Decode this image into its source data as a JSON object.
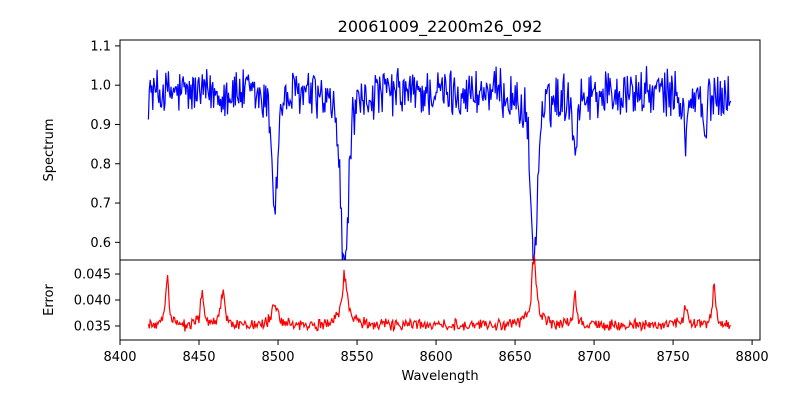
{
  "chart_data": [
    {
      "type": "line",
      "title": "20061009_2200m26_092",
      "ylabel": "Spectrum",
      "xlim": [
        8400,
        8805
      ],
      "ylim": [
        0.555,
        1.115
      ],
      "yticks": [
        0.6,
        0.7,
        0.8,
        0.9,
        1.0,
        1.1
      ],
      "ytick_labels": [
        "0.6",
        "0.7",
        "0.8",
        "0.9",
        "1.0",
        "1.1"
      ],
      "grid": false,
      "series": [
        {
          "color": "#0000ff",
          "x_range": [
            8418,
            8787
          ],
          "continuum": 0.98,
          "features": [
            {
              "x": 8498.0,
              "depth": 0.25,
              "width": 1.6
            },
            {
              "x": 8542.0,
              "depth": 0.4,
              "width": 2.2
            },
            {
              "x": 8662.0,
              "depth": 0.38,
              "width": 2.0
            },
            {
              "x": 8688.0,
              "depth": 0.12,
              "width": 1.2
            },
            {
              "x": 8758.0,
              "depth": 0.1,
              "width": 1.2
            },
            {
              "x": 8770.0,
              "depth": 0.1,
              "width": 1.2
            }
          ]
        }
      ]
    },
    {
      "type": "line",
      "xlabel": "Wavelength",
      "ylabel": "Error",
      "xlim": [
        8400,
        8805
      ],
      "ylim": [
        0.0323,
        0.0477
      ],
      "xticks": [
        8400,
        8450,
        8500,
        8550,
        8600,
        8650,
        8700,
        8750,
        8800
      ],
      "xtick_labels": [
        "8400",
        "8450",
        "8500",
        "8550",
        "8600",
        "8650",
        "8700",
        "8750",
        "8800"
      ],
      "yticks": [
        0.035,
        0.04,
        0.045
      ],
      "ytick_labels": [
        "0.035",
        "0.040",
        "0.045"
      ],
      "grid": false,
      "series": [
        {
          "color": "#ff0000",
          "x_range": [
            8418,
            8787
          ],
          "baseline": 0.0352,
          "features": [
            {
              "x": 8430.0,
              "height": 0.0085,
              "width": 0.8
            },
            {
              "x": 8452.0,
              "height": 0.006,
              "width": 0.8
            },
            {
              "x": 8465.0,
              "height": 0.0065,
              "width": 1.0
            },
            {
              "x": 8498.0,
              "height": 0.0045,
              "width": 1.2
            },
            {
              "x": 8542.0,
              "height": 0.009,
              "width": 1.6
            },
            {
              "x": 8662.0,
              "height": 0.0115,
              "width": 1.4
            },
            {
              "x": 8688.0,
              "height": 0.005,
              "width": 0.8
            },
            {
              "x": 8758.0,
              "height": 0.0035,
              "width": 1.0
            },
            {
              "x": 8776.0,
              "height": 0.0095,
              "width": 0.6
            }
          ]
        }
      ]
    }
  ]
}
